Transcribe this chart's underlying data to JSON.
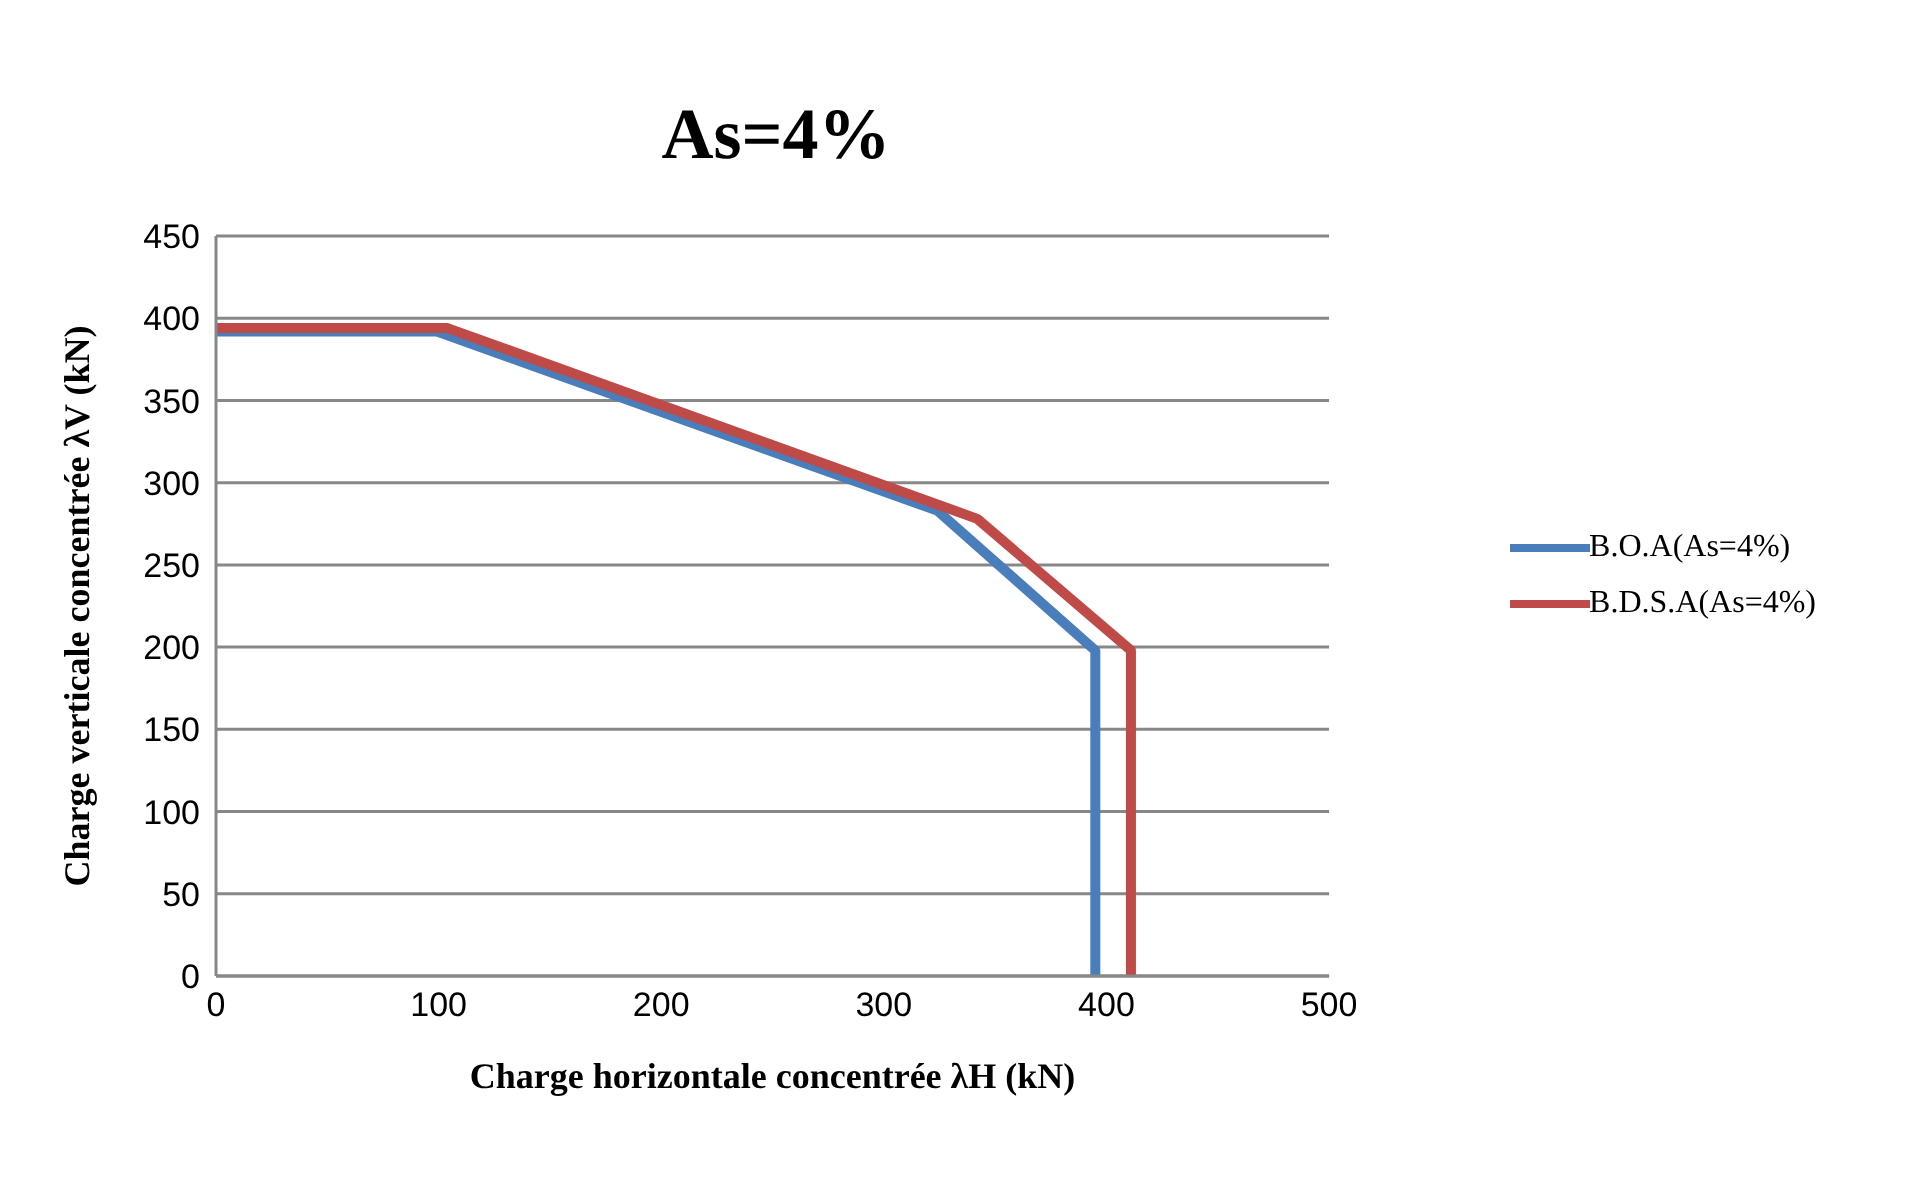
{
  "chart_data": {
    "type": "line",
    "title": "As=4%",
    "xlabel": "Charge horizontale concentrée  λH (kN)",
    "ylabel": "Charge verticale concentrée  λV (kN)",
    "series": [
      {
        "name": "B.O.A(As=4%)",
        "color": "#4a7ebb",
        "x": [
          0,
          99,
          324,
          395,
          395
        ],
        "values": [
          392,
          392,
          283,
          198,
          0
        ]
      },
      {
        "name": "B.D.S.A(As=4%)",
        "color": "#be4b48",
        "x": [
          0,
          104,
          342,
          411,
          411
        ],
        "values": [
          394,
          394,
          278,
          198,
          0
        ]
      }
    ],
    "xlim": [
      0,
      500
    ],
    "xticks": [
      0,
      100,
      200,
      300,
      400,
      500
    ],
    "ylim": [
      0,
      450
    ],
    "yticks": [
      0,
      50,
      100,
      150,
      200,
      250,
      300,
      350,
      400,
      450
    ],
    "grid": "y",
    "legend": "right",
    "marker": "none",
    "line_style": "solid"
  }
}
